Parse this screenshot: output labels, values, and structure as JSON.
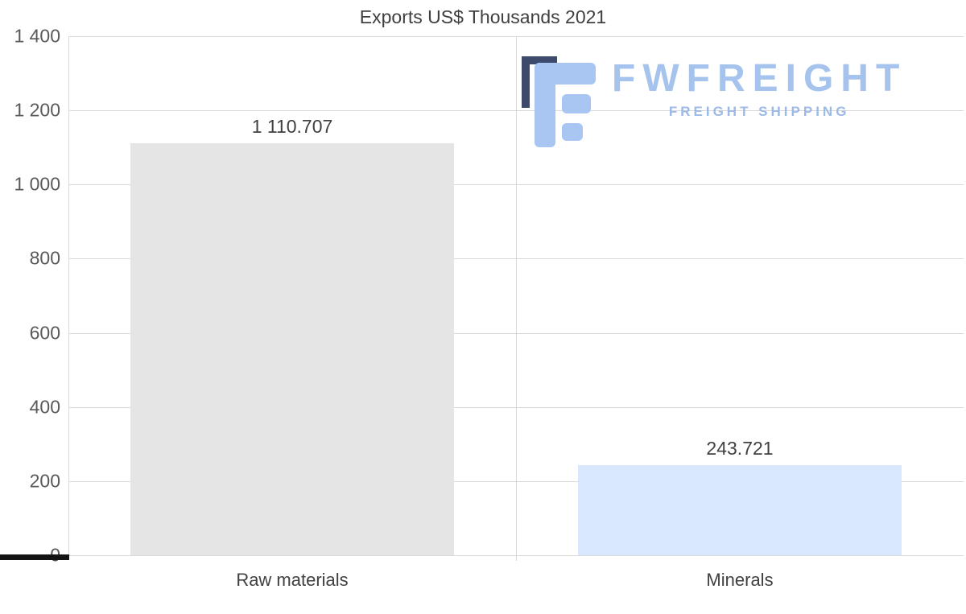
{
  "logo": {
    "name": "FWFREIGHT",
    "tagline": "FREIGHT SHIPPING",
    "name_color": "#a6c3ee",
    "tagline_color": "#9db9e8",
    "icon_color": "#a9c6f2",
    "icon_accent_color": "#3e4a6b"
  },
  "chart_data": {
    "type": "bar",
    "title": "Exports US$ Thousands 2021",
    "categories": [
      "Raw materials",
      "Minerals"
    ],
    "values": [
      1110.707,
      243.721
    ],
    "value_labels": [
      "1 110.707",
      "243.721"
    ],
    "bar_colors": [
      "#e5e5e5",
      "#d9e8fc"
    ],
    "ylim": [
      0,
      1400
    ],
    "yticks": [
      {
        "value": 0,
        "label": "0"
      },
      {
        "value": 200,
        "label": "200"
      },
      {
        "value": 400,
        "label": "400"
      },
      {
        "value": 600,
        "label": "600"
      },
      {
        "value": 800,
        "label": "800"
      },
      {
        "value": 1000,
        "label": "1 000"
      },
      {
        "value": 1200,
        "label": "1 200"
      },
      {
        "value": 1400,
        "label": "1 400"
      }
    ],
    "grid": true,
    "legend": false,
    "xlabel": "",
    "ylabel": ""
  }
}
